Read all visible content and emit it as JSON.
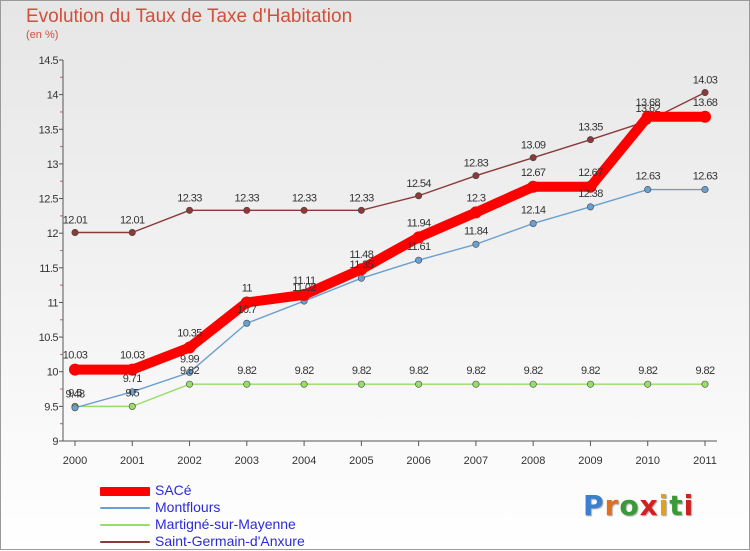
{
  "title": "Evolution du Taux de Taxe d'Habitation",
  "subtitle": "(en %)",
  "logo": {
    "text": "Proxiti",
    "letter_colors": [
      "#3a7fd0",
      "#e07020",
      "#3a9a3a",
      "#d02020",
      "#e0a020",
      "#3a9a3a",
      "#d02020"
    ]
  },
  "chart_data": {
    "type": "line",
    "x": [
      "2000",
      "2001",
      "2002",
      "2003",
      "2004",
      "2005",
      "2006",
      "2007",
      "2008",
      "2009",
      "2010",
      "2011"
    ],
    "ylim": [
      9,
      14.5
    ],
    "yticks": [
      "9",
      "9.5",
      "10",
      "10.5",
      "11",
      "11.5",
      "12",
      "12.5",
      "13",
      "13.5",
      "14",
      "14.5"
    ],
    "grid": false,
    "legend_position": "bottom-left",
    "series": [
      {
        "name": "SACé",
        "color": "#ff0000",
        "values": [
          10.03,
          10.03,
          10.35,
          11,
          11.11,
          11.48,
          11.94,
          12.3,
          12.67,
          12.67,
          13.68,
          13.68
        ],
        "labels": [
          "10.03",
          "10.03",
          "10.35",
          "11",
          "11.11",
          "11.48",
          "11.94",
          "12.3",
          "12.67",
          "12.67",
          "13.68",
          "13.68"
        ]
      },
      {
        "name": "Montflours",
        "color": "#6aa0d0",
        "values": [
          9.48,
          9.71,
          9.99,
          10.7,
          11.02,
          11.35,
          11.61,
          11.84,
          12.14,
          12.38,
          12.63,
          12.63
        ],
        "labels": [
          "9.48",
          "9.71",
          "9.99",
          "10.7",
          "11.02",
          "11.35",
          "11.61",
          "11.84",
          "12.14",
          "12.38",
          "12.63",
          "12.63"
        ]
      },
      {
        "name": "Martigné-sur-Mayenne",
        "color": "#99dd66",
        "values": [
          9.5,
          9.5,
          9.82,
          9.82,
          9.82,
          9.82,
          9.82,
          9.82,
          9.82,
          9.82,
          9.82,
          9.82
        ],
        "labels": [
          "9.5",
          "9.5",
          "9.82",
          "9.82",
          "9.82",
          "9.82",
          "9.82",
          "9.82",
          "9.82",
          "9.82",
          "9.82",
          "9.82"
        ]
      },
      {
        "name": "Saint-Germain-d'Anxure",
        "color": "#8b3a3a",
        "values": [
          12.01,
          12.01,
          12.33,
          12.33,
          12.33,
          12.33,
          12.54,
          12.83,
          13.09,
          13.35,
          13.62,
          14.03
        ],
        "labels": [
          "12.01",
          "12.01",
          "12.33",
          "12.33",
          "12.33",
          "12.33",
          "12.54",
          "12.83",
          "13.09",
          "13.35",
          "13.62",
          "14.03"
        ]
      }
    ]
  }
}
